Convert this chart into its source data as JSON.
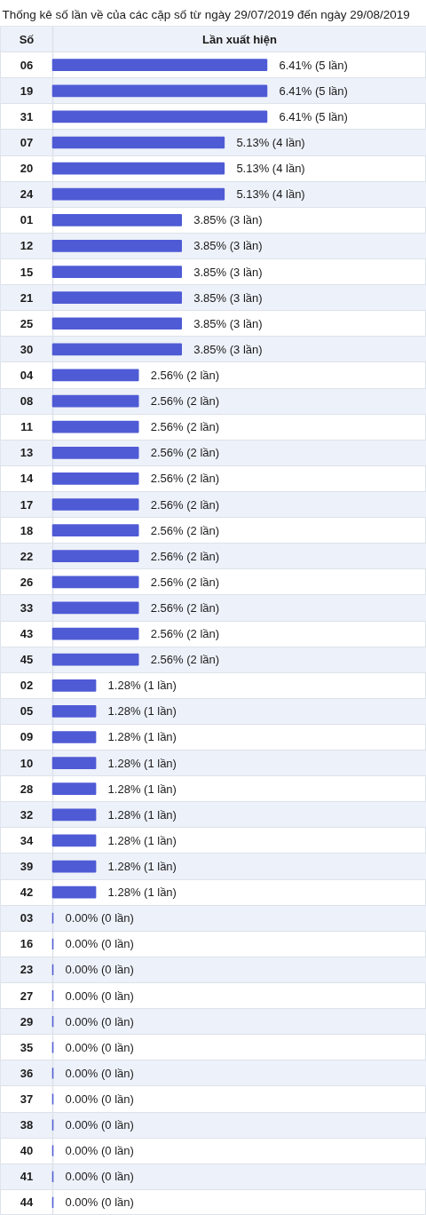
{
  "chart_data": {
    "type": "bar",
    "orientation": "horizontal",
    "title": "Thống kê số lần về của các cặp số từ ngày 29/07/2019 đến ngày 29/08/2019",
    "xlabel": "Lần xuất hiện",
    "ylabel": "Số",
    "categories": [
      "06",
      "19",
      "31",
      "07",
      "20",
      "24",
      "01",
      "12",
      "15",
      "21",
      "25",
      "30",
      "04",
      "08",
      "11",
      "13",
      "14",
      "17",
      "18",
      "22",
      "26",
      "33",
      "43",
      "45",
      "02",
      "05",
      "09",
      "10",
      "28",
      "32",
      "34",
      "39",
      "42",
      "03",
      "16",
      "23",
      "27",
      "29",
      "35",
      "36",
      "37",
      "38",
      "40",
      "41",
      "44"
    ],
    "values": [
      6.41,
      6.41,
      6.41,
      5.13,
      5.13,
      5.13,
      3.85,
      3.85,
      3.85,
      3.85,
      3.85,
      3.85,
      2.56,
      2.56,
      2.56,
      2.56,
      2.56,
      2.56,
      2.56,
      2.56,
      2.56,
      2.56,
      2.56,
      2.56,
      1.28,
      1.28,
      1.28,
      1.28,
      1.28,
      1.28,
      1.28,
      1.28,
      1.28,
      0,
      0,
      0,
      0,
      0,
      0,
      0,
      0,
      0,
      0,
      0,
      0
    ],
    "value_labels": [
      "6.41% (5 lần)",
      "6.41% (5 lần)",
      "6.41% (5 lần)",
      "5.13% (4 lần)",
      "5.13% (4 lần)",
      "5.13% (4 lần)",
      "3.85% (3 lần)",
      "3.85% (3 lần)",
      "3.85% (3 lần)",
      "3.85% (3 lần)",
      "3.85% (3 lần)",
      "3.85% (3 lần)",
      "2.56% (2 lần)",
      "2.56% (2 lần)",
      "2.56% (2 lần)",
      "2.56% (2 lần)",
      "2.56% (2 lần)",
      "2.56% (2 lần)",
      "2.56% (2 lần)",
      "2.56% (2 lần)",
      "2.56% (2 lần)",
      "2.56% (2 lần)",
      "2.56% (2 lần)",
      "2.56% (2 lần)",
      "1.28% (1 lần)",
      "1.28% (1 lần)",
      "1.28% (1 lần)",
      "1.28% (1 lần)",
      "1.28% (1 lần)",
      "1.28% (1 lần)",
      "1.28% (1 lần)",
      "1.28% (1 lần)",
      "1.28% (1 lần)",
      "0.00% (0 lần)",
      "0.00% (0 lần)",
      "0.00% (0 lần)",
      "0.00% (0 lần)",
      "0.00% (0 lần)",
      "0.00% (0 lần)",
      "0.00% (0 lần)",
      "0.00% (0 lần)",
      "0.00% (0 lần)",
      "0.00% (0 lần)",
      "0.00% (0 lần)",
      "0.00% (0 lần)"
    ],
    "color": "#4f5bd5",
    "grid": "y",
    "tick_labels": "y"
  }
}
